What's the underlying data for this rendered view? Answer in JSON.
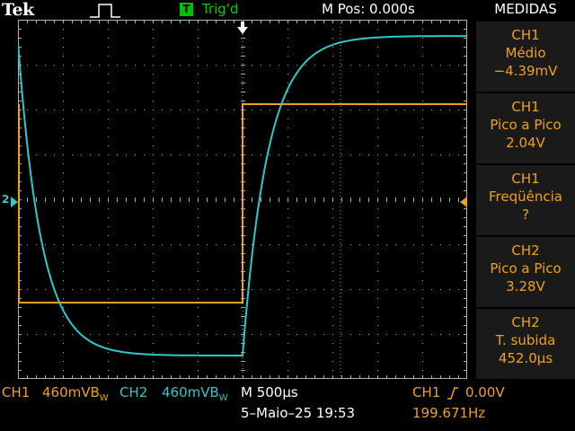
{
  "header": {
    "brand": "Tek",
    "trigger_badge": "T",
    "trigger_status": "Trig'd",
    "m_pos": "M Pos: 0.000s",
    "panel_title": "MEDIDAS"
  },
  "colors": {
    "ch1": "#f0a020",
    "ch2": "#30c8c8",
    "grid": "#b0b0b0"
  },
  "measurements": [
    {
      "channel": "CH1",
      "type": "Médio",
      "value": "−4.39mV"
    },
    {
      "channel": "CH1",
      "type": "Pico a Pico",
      "value": "2.04V"
    },
    {
      "channel": "CH1",
      "type": "Freqüência",
      "value": "?"
    },
    {
      "channel": "CH2",
      "type": "Pico a Pico",
      "value": "3.28V"
    },
    {
      "channel": "CH2",
      "type": "T. subida",
      "value": "452.0µs"
    }
  ],
  "footer": {
    "ch1_label": "CH1",
    "ch1_scale": "460mVB",
    "ch1_scale_sub": "W",
    "ch2_label": "CH2",
    "ch2_scale": "460mVB",
    "ch2_scale_sub": "W",
    "timebase": "M 500µs",
    "date": "5–Maio–25 19:53",
    "trigger_label": "CH1",
    "trigger_level": "0.00V",
    "frequency": "199.671Hz"
  },
  "markers": {
    "ch2_marker": "2"
  }
}
